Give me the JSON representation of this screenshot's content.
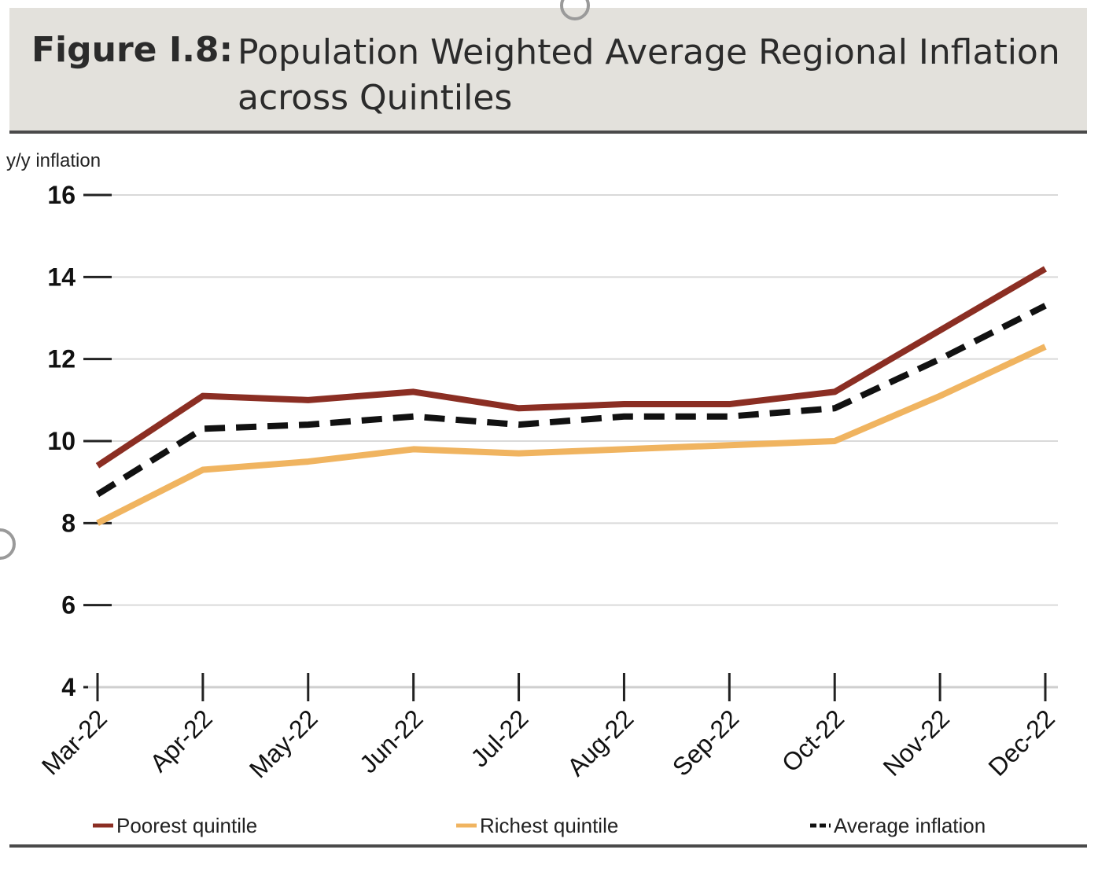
{
  "header": {
    "figure_label": "Figure I.8:",
    "title": "Population Weighted Average Regional Inflation across Quintiles"
  },
  "chart_data": {
    "type": "line",
    "title": "Population Weighted Average Regional Inflation across Quintiles",
    "ylabel": "y/y inflation",
    "xlabel": "",
    "ylim": [
      4,
      16
    ],
    "yticks": [
      4,
      6,
      8,
      10,
      12,
      14,
      16
    ],
    "grid": true,
    "legend_position": "bottom",
    "categories": [
      "Mar-22",
      "Apr-22",
      "May-22",
      "Jun-22",
      "Jul-22",
      "Aug-22",
      "Sep-22",
      "Oct-22",
      "Nov-22",
      "Dec-22"
    ],
    "series": [
      {
        "name": "Poorest quintile",
        "color": "#8b2e23",
        "style": "solid",
        "values": [
          9.4,
          11.1,
          11.0,
          11.2,
          10.8,
          10.9,
          10.9,
          11.2,
          12.7,
          14.2
        ]
      },
      {
        "name": "Richest quintile",
        "color": "#f0b460",
        "style": "solid",
        "values": [
          8.0,
          9.3,
          9.5,
          9.8,
          9.7,
          9.8,
          9.9,
          10.0,
          11.1,
          12.3
        ]
      },
      {
        "name": "Average inflation",
        "color": "#111111",
        "style": "dashed",
        "values": [
          8.7,
          10.3,
          10.4,
          10.6,
          10.4,
          10.6,
          10.6,
          10.8,
          12.0,
          13.3
        ]
      }
    ]
  }
}
